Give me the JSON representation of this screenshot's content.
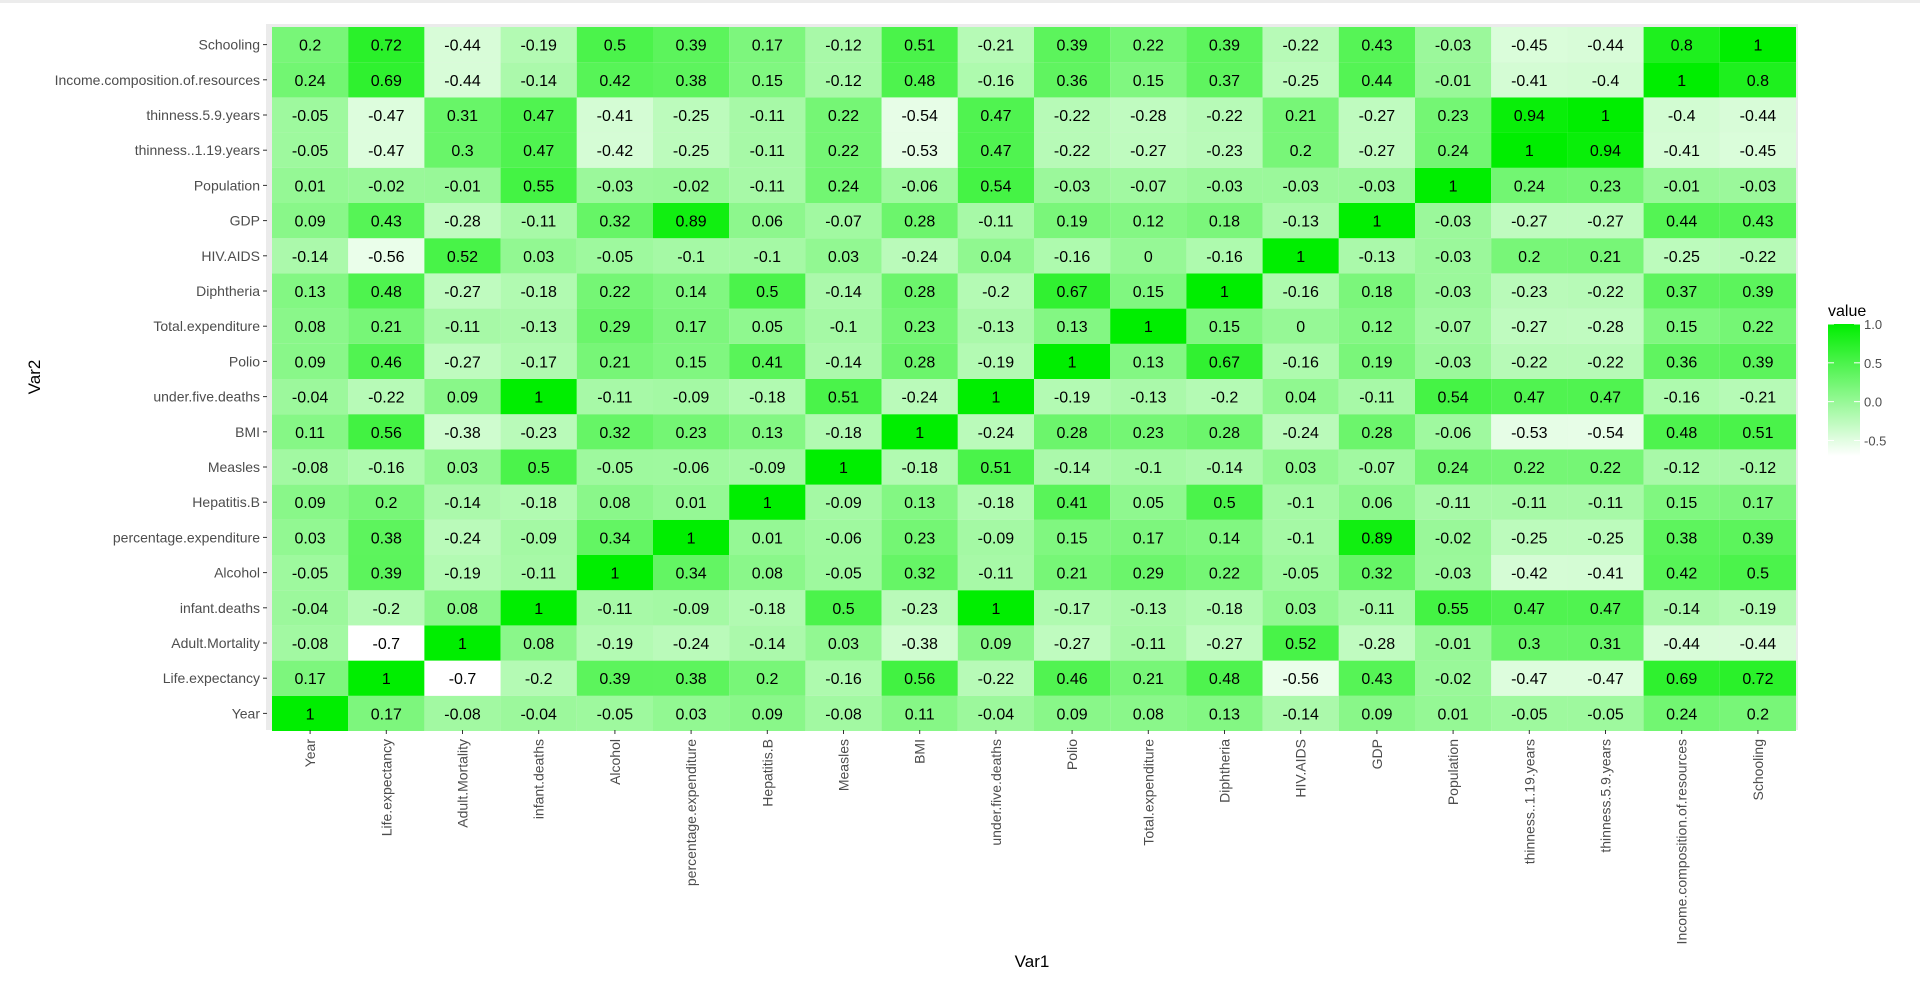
{
  "chart_data": {
    "type": "heatmap",
    "xlabel": "Var1",
    "ylabel": "Var2",
    "legend": {
      "title": "value",
      "position": "right",
      "breaks": [
        1.0,
        0.5,
        0.0,
        -0.5
      ],
      "break_labels": [
        "1.0",
        "0.5",
        "0.0",
        "-0.5"
      ],
      "range": [
        -0.7,
        1.0
      ]
    },
    "colors": {
      "low": "#ffffff",
      "high": "#00ee00",
      "panel": "#ebebeb"
    },
    "variables": [
      "Year",
      "Life.expectancy",
      "Adult.Mortality",
      "infant.deaths",
      "Alcohol",
      "percentage.expenditure",
      "Hepatitis.B",
      "Measles",
      "BMI",
      "under.five.deaths",
      "Polio",
      "Total.expenditure",
      "Diphtheria",
      "HIV.AIDS",
      "GDP",
      "Population",
      "thinness..1.19.years",
      "thinness.5.9.years",
      "Income.composition.of.resources",
      "Schooling"
    ],
    "rows": [
      {
        "var2": "Year",
        "values": [
          1,
          0.17,
          -0.08,
          -0.04,
          -0.05,
          0.03,
          0.09,
          -0.08,
          0.11,
          -0.04,
          0.09,
          0.08,
          0.13,
          -0.14,
          0.09,
          0.01,
          -0.05,
          -0.05,
          0.24,
          0.2
        ],
        "labels": [
          "1",
          "0.17",
          "-0.08",
          "-0.04",
          "-0.05",
          "0.03",
          "0.09",
          "-0.08",
          "0.11",
          "-0.04",
          "0.09",
          "0.08",
          "0.13",
          "-0.14",
          "0.09",
          "0.01",
          "-0.05",
          "-0.05",
          "0.24",
          "0.2"
        ]
      },
      {
        "var2": "Life.expectancy",
        "values": [
          0.17,
          1,
          -0.7,
          -0.2,
          0.39,
          0.38,
          0.2,
          -0.16,
          0.56,
          -0.22,
          0.46,
          0.21,
          0.48,
          -0.56,
          0.43,
          -0.02,
          -0.47,
          -0.47,
          0.69,
          0.72
        ],
        "labels": [
          "0.17",
          "1",
          "-0.7",
          "-0.2",
          "0.39",
          "0.38",
          "0.2",
          "-0.16",
          "0.56",
          "-0.22",
          "0.46",
          "0.21",
          "0.48",
          "-0.56",
          "0.43",
          "-0.02",
          "-0.47",
          "-0.47",
          "0.69",
          "0.72"
        ]
      },
      {
        "var2": "Adult.Mortality",
        "values": [
          -0.08,
          -0.7,
          1,
          0.08,
          -0.19,
          -0.24,
          -0.14,
          0.03,
          -0.38,
          0.09,
          -0.27,
          -0.11,
          -0.27,
          0.52,
          -0.28,
          -0.01,
          0.3,
          0.31,
          -0.44,
          -0.44
        ],
        "labels": [
          "-0.08",
          "-0.7",
          "1",
          "0.08",
          "-0.19",
          "-0.24",
          "-0.14",
          "0.03",
          "-0.38",
          "0.09",
          "-0.27",
          "-0.11",
          "-0.27",
          "0.52",
          "-0.28",
          "-0.01",
          "0.3",
          "0.31",
          "-0.44",
          "-0.44"
        ]
      },
      {
        "var2": "infant.deaths",
        "values": [
          -0.04,
          -0.2,
          0.08,
          1,
          -0.11,
          -0.09,
          -0.18,
          0.5,
          -0.23,
          1,
          -0.17,
          -0.13,
          -0.18,
          0.03,
          -0.11,
          0.55,
          0.47,
          0.47,
          -0.14,
          -0.19
        ],
        "labels": [
          "-0.04",
          "-0.2",
          "0.08",
          "1",
          "-0.11",
          "-0.09",
          "-0.18",
          "0.5",
          "-0.23",
          "1",
          "-0.17",
          "-0.13",
          "-0.18",
          "0.03",
          "-0.11",
          "0.55",
          "0.47",
          "0.47",
          "-0.14",
          "-0.19"
        ]
      },
      {
        "var2": "Alcohol",
        "values": [
          -0.05,
          0.39,
          -0.19,
          -0.11,
          1,
          0.34,
          0.08,
          -0.05,
          0.32,
          -0.11,
          0.21,
          0.29,
          0.22,
          -0.05,
          0.32,
          -0.03,
          -0.42,
          -0.41,
          0.42,
          0.5
        ],
        "labels": [
          "-0.05",
          "0.39",
          "-0.19",
          "-0.11",
          "1",
          "0.34",
          "0.08",
          "-0.05",
          "0.32",
          "-0.11",
          "0.21",
          "0.29",
          "0.22",
          "-0.05",
          "0.32",
          "-0.03",
          "-0.42",
          "-0.41",
          "0.42",
          "0.5"
        ]
      },
      {
        "var2": "percentage.expenditure",
        "values": [
          0.03,
          0.38,
          -0.24,
          -0.09,
          0.34,
          1,
          0.01,
          -0.06,
          0.23,
          -0.09,
          0.15,
          0.17,
          0.14,
          -0.1,
          0.89,
          -0.02,
          -0.25,
          -0.25,
          0.38,
          0.39
        ],
        "labels": [
          "0.03",
          "0.38",
          "-0.24",
          "-0.09",
          "0.34",
          "1",
          "0.01",
          "-0.06",
          "0.23",
          "-0.09",
          "0.15",
          "0.17",
          "0.14",
          "-0.1",
          "0.89",
          "-0.02",
          "-0.25",
          "-0.25",
          "0.38",
          "0.39"
        ]
      },
      {
        "var2": "Hepatitis.B",
        "values": [
          0.09,
          0.2,
          -0.14,
          -0.18,
          0.08,
          0.01,
          1,
          -0.09,
          0.13,
          -0.18,
          0.41,
          0.05,
          0.5,
          -0.1,
          0.06,
          -0.11,
          -0.11,
          -0.11,
          0.15,
          0.17
        ],
        "labels": [
          "0.09",
          "0.2",
          "-0.14",
          "-0.18",
          "0.08",
          "0.01",
          "1",
          "-0.09",
          "0.13",
          "-0.18",
          "0.41",
          "0.05",
          "0.5",
          "-0.1",
          "0.06",
          "-0.11",
          "-0.11",
          "-0.11",
          "0.15",
          "0.17"
        ]
      },
      {
        "var2": "Measles",
        "values": [
          -0.08,
          -0.16,
          0.03,
          0.5,
          -0.05,
          -0.06,
          -0.09,
          1,
          -0.18,
          0.51,
          -0.14,
          -0.1,
          -0.14,
          0.03,
          -0.07,
          0.24,
          0.22,
          0.22,
          -0.12,
          -0.12
        ],
        "labels": [
          "-0.08",
          "-0.16",
          "0.03",
          "0.5",
          "-0.05",
          "-0.06",
          "-0.09",
          "1",
          "-0.18",
          "0.51",
          "-0.14",
          "-0.1",
          "-0.14",
          "0.03",
          "-0.07",
          "0.24",
          "0.22",
          "0.22",
          "-0.12",
          "-0.12"
        ]
      },
      {
        "var2": "BMI",
        "values": [
          0.11,
          0.56,
          -0.38,
          -0.23,
          0.32,
          0.23,
          0.13,
          -0.18,
          1,
          -0.24,
          0.28,
          0.23,
          0.28,
          -0.24,
          0.28,
          -0.06,
          -0.53,
          -0.54,
          0.48,
          0.51
        ],
        "labels": [
          "0.11",
          "0.56",
          "-0.38",
          "-0.23",
          "0.32",
          "0.23",
          "0.13",
          "-0.18",
          "1",
          "-0.24",
          "0.28",
          "0.23",
          "0.28",
          "-0.24",
          "0.28",
          "-0.06",
          "-0.53",
          "-0.54",
          "0.48",
          "0.51"
        ]
      },
      {
        "var2": "under.five.deaths",
        "values": [
          -0.04,
          -0.22,
          0.09,
          1,
          -0.11,
          -0.09,
          -0.18,
          0.51,
          -0.24,
          1,
          -0.19,
          -0.13,
          -0.2,
          0.04,
          -0.11,
          0.54,
          0.47,
          0.47,
          -0.16,
          -0.21
        ],
        "labels": [
          "-0.04",
          "-0.22",
          "0.09",
          "1",
          "-0.11",
          "-0.09",
          "-0.18",
          "0.51",
          "-0.24",
          "1",
          "-0.19",
          "-0.13",
          "-0.2",
          "0.04",
          "-0.11",
          "0.54",
          "0.47",
          "0.47",
          "-0.16",
          "-0.21"
        ]
      },
      {
        "var2": "Polio",
        "values": [
          0.09,
          0.46,
          -0.27,
          -0.17,
          0.21,
          0.15,
          0.41,
          -0.14,
          0.28,
          -0.19,
          1,
          0.13,
          0.67,
          -0.16,
          0.19,
          -0.03,
          -0.22,
          -0.22,
          0.36,
          0.39
        ],
        "labels": [
          "0.09",
          "0.46",
          "-0.27",
          "-0.17",
          "0.21",
          "0.15",
          "0.41",
          "-0.14",
          "0.28",
          "-0.19",
          "1",
          "0.13",
          "0.67",
          "-0.16",
          "0.19",
          "-0.03",
          "-0.22",
          "-0.22",
          "0.36",
          "0.39"
        ]
      },
      {
        "var2": "Total.expenditure",
        "values": [
          0.08,
          0.21,
          -0.11,
          -0.13,
          0.29,
          0.17,
          0.05,
          -0.1,
          0.23,
          -0.13,
          0.13,
          1,
          0.15,
          0,
          0.12,
          -0.07,
          -0.27,
          -0.28,
          0.15,
          0.22
        ],
        "labels": [
          "0.08",
          "0.21",
          "-0.11",
          "-0.13",
          "0.29",
          "0.17",
          "0.05",
          "-0.1",
          "0.23",
          "-0.13",
          "0.13",
          "1",
          "0.15",
          "0",
          "0.12",
          "-0.07",
          "-0.27",
          "-0.28",
          "0.15",
          "0.22"
        ]
      },
      {
        "var2": "Diphtheria",
        "values": [
          0.13,
          0.48,
          -0.27,
          -0.18,
          0.22,
          0.14,
          0.5,
          -0.14,
          0.28,
          -0.2,
          0.67,
          0.15,
          1,
          -0.16,
          0.18,
          -0.03,
          -0.23,
          -0.22,
          0.37,
          0.39
        ],
        "labels": [
          "0.13",
          "0.48",
          "-0.27",
          "-0.18",
          "0.22",
          "0.14",
          "0.5",
          "-0.14",
          "0.28",
          "-0.2",
          "0.67",
          "0.15",
          "1",
          "-0.16",
          "0.18",
          "-0.03",
          "-0.23",
          "-0.22",
          "0.37",
          "0.39"
        ]
      },
      {
        "var2": "HIV.AIDS",
        "values": [
          -0.14,
          -0.56,
          0.52,
          0.03,
          -0.05,
          -0.1,
          -0.1,
          0.03,
          -0.24,
          0.04,
          -0.16,
          0,
          -0.16,
          1,
          -0.13,
          -0.03,
          0.2,
          0.21,
          -0.25,
          -0.22
        ],
        "labels": [
          "-0.14",
          "-0.56",
          "0.52",
          "0.03",
          "-0.05",
          "-0.1",
          "-0.1",
          "0.03",
          "-0.24",
          "0.04",
          "-0.16",
          "0",
          "-0.16",
          "1",
          "-0.13",
          "-0.03",
          "0.2",
          "0.21",
          "-0.25",
          "-0.22"
        ]
      },
      {
        "var2": "GDP",
        "values": [
          0.09,
          0.43,
          -0.28,
          -0.11,
          0.32,
          0.89,
          0.06,
          -0.07,
          0.28,
          -0.11,
          0.19,
          0.12,
          0.18,
          -0.13,
          1,
          -0.03,
          -0.27,
          -0.27,
          0.44,
          0.43
        ],
        "labels": [
          "0.09",
          "0.43",
          "-0.28",
          "-0.11",
          "0.32",
          "0.89",
          "0.06",
          "-0.07",
          "0.28",
          "-0.11",
          "0.19",
          "0.12",
          "0.18",
          "-0.13",
          "1",
          "-0.03",
          "-0.27",
          "-0.27",
          "0.44",
          "0.43"
        ]
      },
      {
        "var2": "Population",
        "values": [
          0.01,
          -0.02,
          -0.01,
          0.55,
          -0.03,
          -0.02,
          -0.11,
          0.24,
          -0.06,
          0.54,
          -0.03,
          -0.07,
          -0.03,
          -0.03,
          -0.03,
          1,
          0.24,
          0.23,
          -0.01,
          -0.03
        ],
        "labels": [
          "0.01",
          "-0.02",
          "-0.01",
          "0.55",
          "-0.03",
          "-0.02",
          "-0.11",
          "0.24",
          "-0.06",
          "0.54",
          "-0.03",
          "-0.07",
          "-0.03",
          "-0.03",
          "-0.03",
          "1",
          "0.24",
          "0.23",
          "-0.01",
          "-0.03"
        ]
      },
      {
        "var2": "thinness..1.19.years",
        "values": [
          -0.05,
          -0.47,
          0.3,
          0.47,
          -0.42,
          -0.25,
          -0.11,
          0.22,
          -0.53,
          0.47,
          -0.22,
          -0.27,
          -0.23,
          0.2,
          -0.27,
          0.24,
          1,
          0.94,
          -0.41,
          -0.45
        ],
        "labels": [
          "-0.05",
          "-0.47",
          "0.3",
          "0.47",
          "-0.42",
          "-0.25",
          "-0.11",
          "0.22",
          "-0.53",
          "0.47",
          "-0.22",
          "-0.27",
          "-0.23",
          "0.2",
          "-0.27",
          "0.24",
          "1",
          "0.94",
          "-0.41",
          "-0.45"
        ]
      },
      {
        "var2": "thinness.5.9.years",
        "values": [
          -0.05,
          -0.47,
          0.31,
          0.47,
          -0.41,
          -0.25,
          -0.11,
          0.22,
          -0.54,
          0.47,
          -0.22,
          -0.28,
          -0.22,
          0.21,
          -0.27,
          0.23,
          0.94,
          1,
          -0.4,
          -0.44
        ],
        "labels": [
          "-0.05",
          "-0.47",
          "0.31",
          "0.47",
          "-0.41",
          "-0.25",
          "-0.11",
          "0.22",
          "-0.54",
          "0.47",
          "-0.22",
          "-0.28",
          "-0.22",
          "0.21",
          "-0.27",
          "0.23",
          "0.94",
          "1",
          "-0.4",
          "-0.44"
        ]
      },
      {
        "var2": "Income.composition.of.resources",
        "values": [
          0.24,
          0.69,
          -0.44,
          -0.14,
          0.42,
          0.38,
          0.15,
          -0.12,
          0.48,
          -0.16,
          0.36,
          0.15,
          0.37,
          -0.25,
          0.44,
          -0.01,
          -0.41,
          -0.4,
          1,
          0.8
        ],
        "labels": [
          "0.24",
          "0.69",
          "-0.44",
          "-0.14",
          "0.42",
          "0.38",
          "0.15",
          "-0.12",
          "0.48",
          "-0.16",
          "0.36",
          "0.15",
          "0.37",
          "-0.25",
          "0.44",
          "-0.01",
          "-0.41",
          "-0.4",
          "1",
          "0.8"
        ]
      },
      {
        "var2": "Schooling",
        "values": [
          0.2,
          0.72,
          -0.44,
          -0.19,
          0.5,
          0.39,
          0.17,
          -0.12,
          0.51,
          -0.21,
          0.39,
          0.22,
          0.39,
          -0.22,
          0.43,
          -0.03,
          -0.45,
          -0.44,
          0.8,
          1
        ],
        "labels": [
          "0.2",
          "0.72",
          "-0.44",
          "-0.19",
          "0.5",
          "0.39",
          "0.17",
          "-0.12",
          "0.51",
          "-0.21",
          "0.39",
          "0.22",
          "0.39",
          "-0.22",
          "0.43",
          "-0.03",
          "-0.45",
          "-0.44",
          "0.8",
          "1"
        ]
      }
    ]
  }
}
